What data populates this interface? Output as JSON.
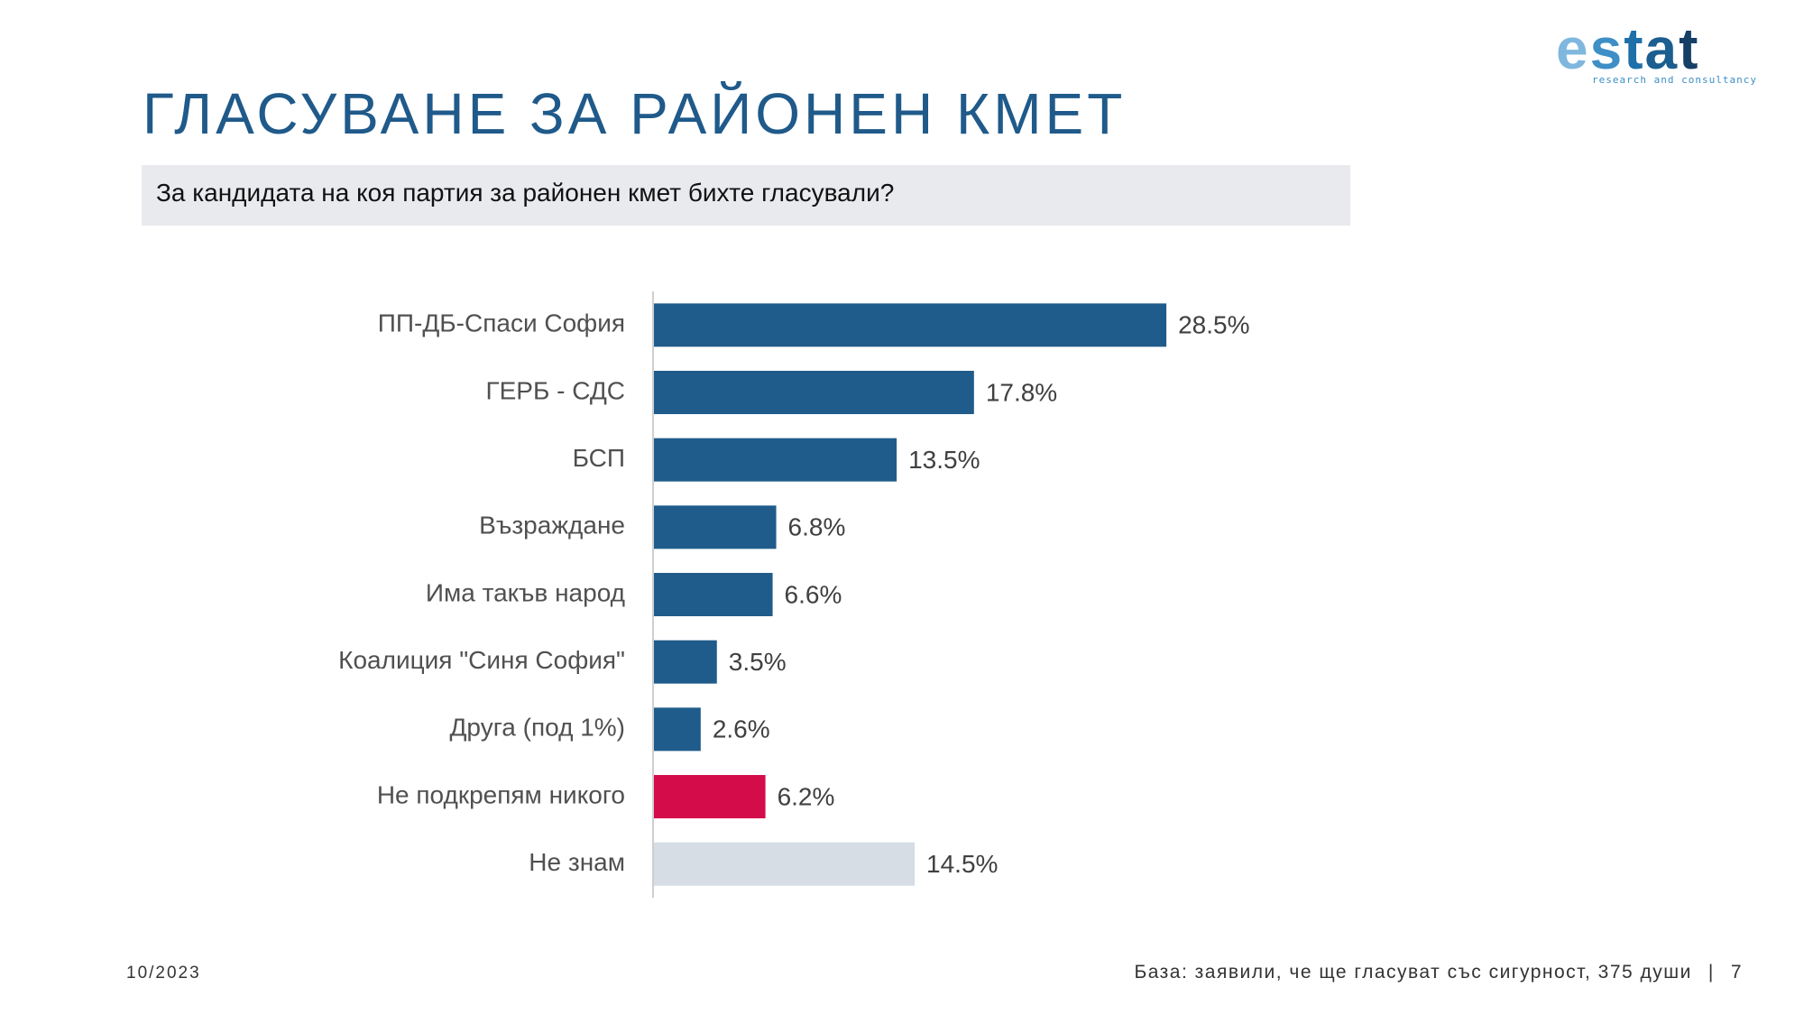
{
  "logo": {
    "word_letters": [
      "e",
      "s",
      "t",
      "a",
      "t"
    ],
    "letter_colors": [
      "#7fb7de",
      "#3d8fc6",
      "#1f6fa8",
      "#1b5e8f",
      "#163f66"
    ],
    "tagline": "research and consultancy"
  },
  "title": "ГЛАСУВАНЕ ЗА РАЙОНЕН КМЕТ",
  "question": "За кандидата на коя партия за районен кмет бихте гласували?",
  "chart_data": {
    "type": "bar",
    "orientation": "horizontal",
    "categories": [
      "ПП-ДБ-Спаси София",
      "ГЕРБ - СДС",
      "БСП",
      "Възраждане",
      "Има такъв народ",
      "Коалиция \"Синя София\"",
      "Друга (под 1%)",
      "Не подкрепям никого",
      "Не знам"
    ],
    "values": [
      28.5,
      17.8,
      13.5,
      6.8,
      6.6,
      3.5,
      2.6,
      6.2,
      14.5
    ],
    "labels": [
      "28.5%",
      "17.8%",
      "13.5%",
      "6.8%",
      "6.6%",
      "3.5%",
      "2.6%",
      "6.2%",
      "14.5%"
    ],
    "colors": [
      "#1f5c8b",
      "#1f5c8b",
      "#1f5c8b",
      "#1f5c8b",
      "#1f5c8b",
      "#1f5c8b",
      "#1f5c8b",
      "#d40c4a",
      "#d6dde4"
    ],
    "xlim": [
      0,
      30
    ],
    "grid": false,
    "title": "",
    "xlabel": "",
    "ylabel": ""
  },
  "footer": {
    "date": "10/2023",
    "base": "База: заявили, че ще гласуват със сигурност, 375 души",
    "separator": "|",
    "page": "7"
  }
}
